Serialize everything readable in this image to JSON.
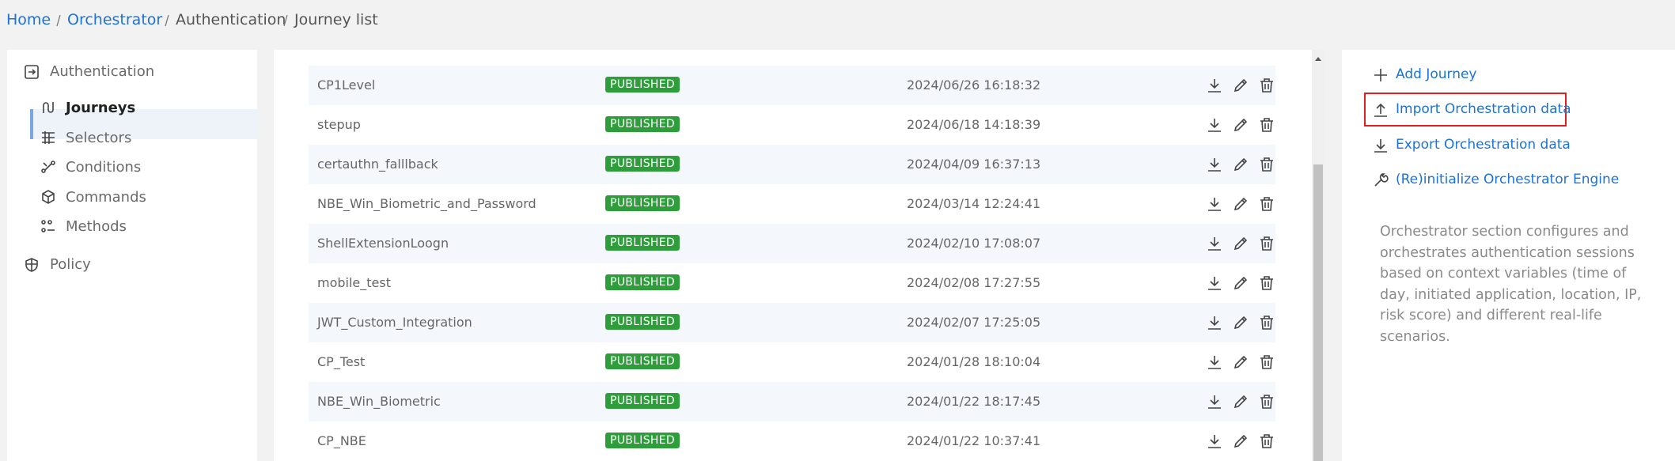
{
  "breadcrumb": [
    "Home",
    "Orchestrator",
    "Authentication",
    "Journey list"
  ],
  "nav": {
    "section": "Authentication",
    "items": [
      "Journeys",
      "Selectors",
      "Conditions",
      "Commands",
      "Methods"
    ],
    "other": "Policy"
  },
  "table": {
    "rows": [
      [
        "CP1Level",
        "PUBLISHED",
        "2024/06/26 16:18:32"
      ],
      [
        "stepup",
        "PUBLISHED",
        "2024/06/18 14:18:39"
      ],
      [
        "certauthn_falllback",
        "PUBLISHED",
        "2024/04/09 16:37:13"
      ],
      [
        "NBE_Win_Biometric_and_Password",
        "PUBLISHED",
        "2024/03/14 12:24:41"
      ],
      [
        "ShellExtensionLoogn",
        "PUBLISHED",
        "2024/02/10 17:08:07"
      ],
      [
        "mobile_test",
        "PUBLISHED",
        "2024/02/08 17:27:55"
      ],
      [
        "JWT_Custom_Integration",
        "PUBLISHED",
        "2024/02/07 17:25:05"
      ],
      [
        "CP_Test",
        "PUBLISHED",
        "2024/01/28 18:10:04"
      ],
      [
        "NBE_Win_Biometric",
        "PUBLISHED",
        "2024/01/22 18:17:45"
      ],
      [
        "CP_NBE",
        "PUBLISHED",
        "2024/01/22 10:37:41"
      ]
    ]
  },
  "actions": [
    "Add Journey",
    "Import Orchestration data",
    "Export Orchestration data",
    "(Re)initialize Orchestrator Engine"
  ],
  "description": "Orchestrator section configures and orchestrates authentication sessions based on context variables (time of day, initiated application, location, IP, risk score) and different real-life scenarios."
}
